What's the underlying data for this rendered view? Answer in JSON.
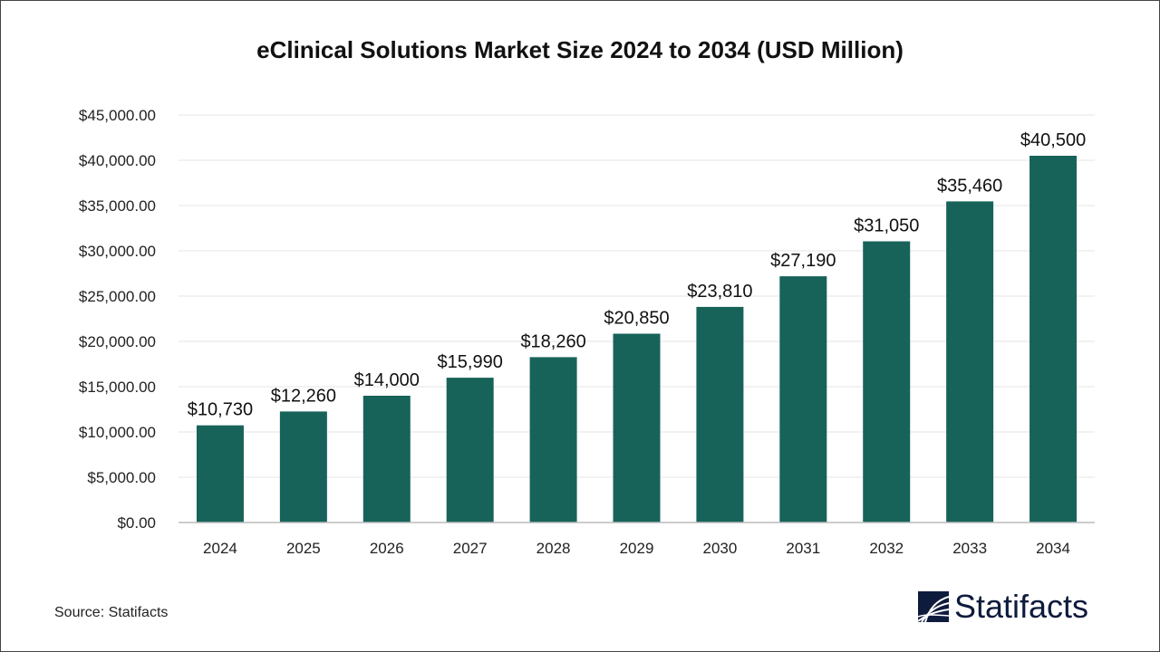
{
  "chart_data": {
    "type": "bar",
    "title": "eClinical Solutions Market Size 2024 to 2034 (USD Million)",
    "categories": [
      "2024",
      "2025",
      "2026",
      "2027",
      "2028",
      "2029",
      "2030",
      "2031",
      "2032",
      "2033",
      "2034"
    ],
    "values": [
      10730,
      12260,
      14000,
      15990,
      18260,
      20850,
      23810,
      27190,
      31050,
      35460,
      40500
    ],
    "data_labels": [
      "$10,730",
      "$12,260",
      "$14,000",
      "$15,990",
      "$18,260",
      "$20,850",
      "$23,810",
      "$27,190",
      "$31,050",
      "$35,460",
      "$40,500"
    ],
    "y_ticks": [
      "$0.00",
      "$5,000.00",
      "$10,000.00",
      "$15,000.00",
      "$20,000.00",
      "$25,000.00",
      "$30,000.00",
      "$35,000.00",
      "$40,000.00",
      "$45,000.00"
    ],
    "ylim": [
      0,
      45000
    ],
    "xlabel": "",
    "ylabel": "",
    "grid": true,
    "bar_color": "#17635a"
  },
  "source": "Source: Statifacts",
  "logo": {
    "text": "Statifacts",
    "color": "#0f1b3d"
  }
}
